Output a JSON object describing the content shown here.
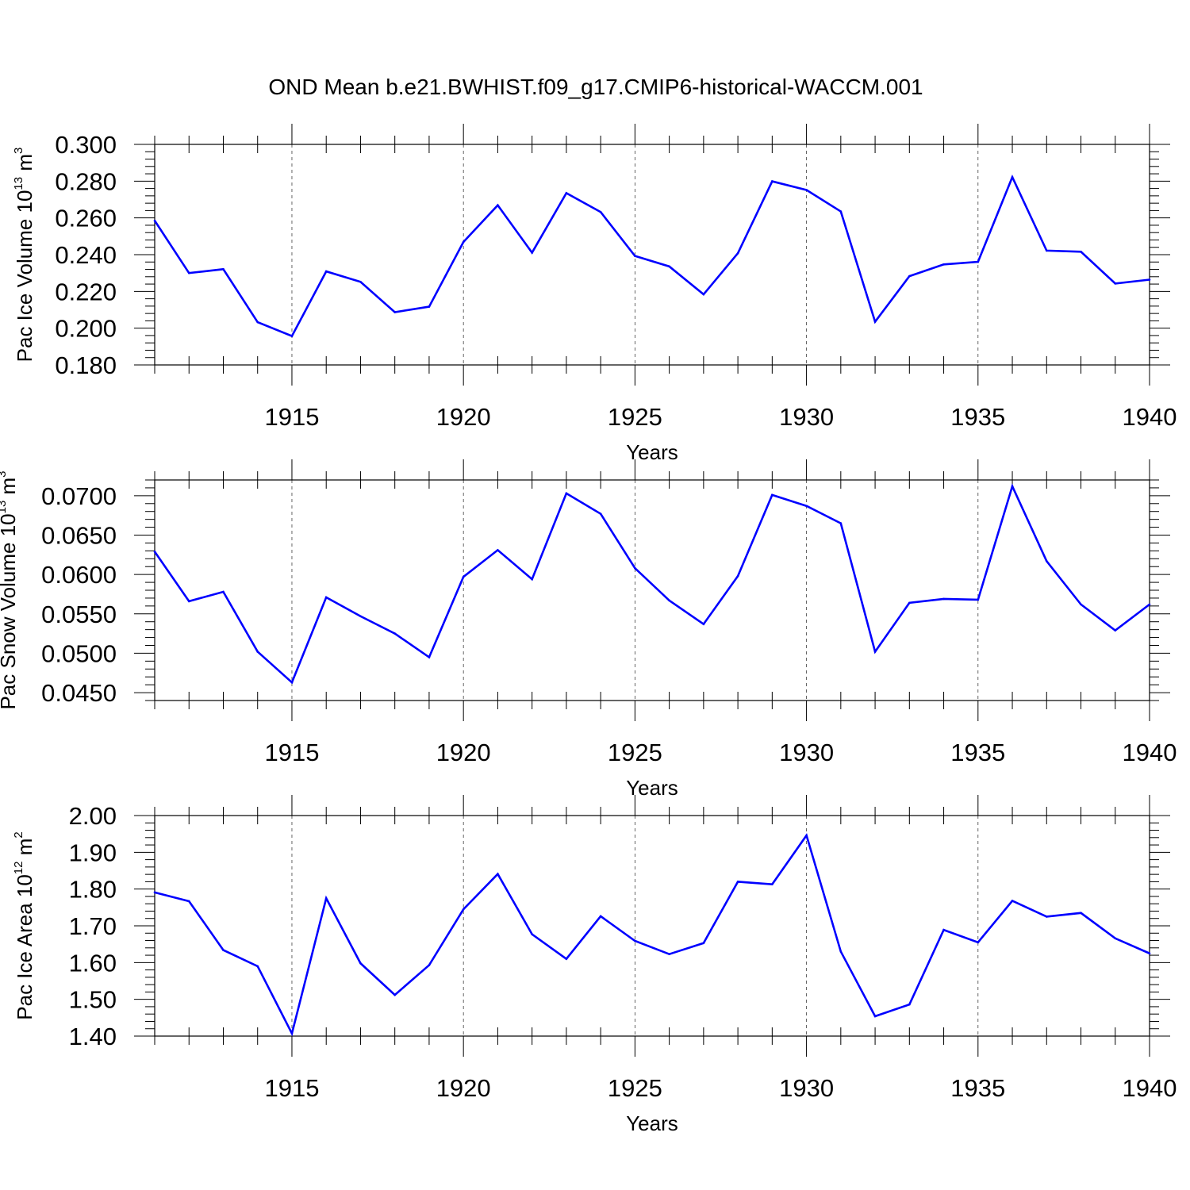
{
  "figure": {
    "title": "OND Mean b.e21.BWHIST.f09_g17.CMIP6-historical-WACCM.001"
  },
  "colors": {
    "series": "#0000ff",
    "axis": "#000000",
    "grid": "#000000"
  },
  "chart_data": [
    {
      "type": "line",
      "title": "OND Mean b.e21.BWHIST.f09_g17.CMIP6-historical-WACCM.001",
      "ylabel": "Pac Ice Volume 10^13 m^3",
      "ylabel_parts": {
        "base": "Pac Ice Volume 10",
        "exp": "13",
        "unit": "m",
        "unit_exp": "3"
      },
      "xlabel": "Years",
      "xlim": [
        1911,
        1940
      ],
      "ylim": [
        0.18,
        0.3
      ],
      "x_ticks": [
        "1915",
        "1920",
        "1925",
        "1930",
        "1935",
        "1940"
      ],
      "y_ticks": [
        "0.180",
        "0.200",
        "0.220",
        "0.240",
        "0.260",
        "0.280",
        "0.300"
      ],
      "grid": "vertical dashed at major x ticks",
      "x": [
        1911,
        1912,
        1913,
        1914,
        1915,
        1916,
        1917,
        1918,
        1919,
        1920,
        1921,
        1922,
        1923,
        1924,
        1925,
        1926,
        1927,
        1928,
        1929,
        1930,
        1931,
        1932,
        1933,
        1934,
        1935,
        1936,
        1937,
        1938,
        1939,
        1940
      ],
      "series": [
        {
          "values": [
            0.2585,
            0.23,
            0.2321,
            0.2033,
            0.1957,
            0.2309,
            0.2252,
            0.2087,
            0.2117,
            0.2469,
            0.2669,
            0.2411,
            0.2735,
            0.2632,
            0.2393,
            0.2336,
            0.2184,
            0.2408,
            0.2799,
            0.2752,
            0.2635,
            0.2035,
            0.2283,
            0.2347,
            0.2361,
            0.2822,
            0.2422,
            0.2416,
            0.2243,
            0.2264
          ]
        }
      ]
    },
    {
      "type": "line",
      "ylabel": "Pac Snow Volume 10^13 m^3",
      "ylabel_parts": {
        "base": "Pac Snow Volume 10",
        "exp": "13",
        "unit": "m",
        "unit_exp": "3"
      },
      "xlabel": "Years",
      "xlim": [
        1911,
        1940
      ],
      "ylim": [
        0.044,
        0.072
      ],
      "x_ticks": [
        "1915",
        "1920",
        "1925",
        "1930",
        "1935",
        "1940"
      ],
      "y_ticks": [
        "0.0450",
        "0.0500",
        "0.0550",
        "0.0600",
        "0.0650",
        "0.0700"
      ],
      "grid": "vertical dashed at major x ticks",
      "x": [
        1911,
        1912,
        1913,
        1914,
        1915,
        1916,
        1917,
        1918,
        1919,
        1920,
        1921,
        1922,
        1923,
        1924,
        1925,
        1926,
        1927,
        1928,
        1929,
        1930,
        1931,
        1932,
        1933,
        1934,
        1935,
        1936,
        1937,
        1938,
        1939,
        1940
      ],
      "series": [
        {
          "values": [
            0.0629,
            0.0566,
            0.0578,
            0.0502,
            0.0463,
            0.0571,
            0.0547,
            0.0525,
            0.0495,
            0.0597,
            0.0631,
            0.0594,
            0.0703,
            0.0677,
            0.0608,
            0.0567,
            0.0537,
            0.0598,
            0.0701,
            0.0687,
            0.0665,
            0.0502,
            0.0564,
            0.0569,
            0.0568,
            0.0712,
            0.0617,
            0.0562,
            0.0529,
            0.0562
          ]
        }
      ]
    },
    {
      "type": "line",
      "ylabel": "Pac Ice Area 10^12 m^2",
      "ylabel_parts": {
        "base": "Pac Ice Area 10",
        "exp": "12",
        "unit": "m",
        "unit_exp": "2"
      },
      "xlabel": "Years",
      "xlim": [
        1911,
        1940
      ],
      "ylim": [
        1.4,
        2.0
      ],
      "x_ticks": [
        "1915",
        "1920",
        "1925",
        "1930",
        "1935",
        "1940"
      ],
      "y_ticks": [
        "1.40",
        "1.50",
        "1.60",
        "1.70",
        "1.80",
        "1.90",
        "2.00"
      ],
      "grid": "vertical dashed at major x ticks",
      "x": [
        1911,
        1912,
        1913,
        1914,
        1915,
        1916,
        1917,
        1918,
        1919,
        1920,
        1921,
        1922,
        1923,
        1924,
        1925,
        1926,
        1927,
        1928,
        1929,
        1930,
        1931,
        1932,
        1933,
        1934,
        1935,
        1936,
        1937,
        1938,
        1939,
        1940
      ],
      "series": [
        {
          "values": [
            1.791,
            1.767,
            1.634,
            1.59,
            1.407,
            1.775,
            1.598,
            1.512,
            1.593,
            1.745,
            1.841,
            1.677,
            1.61,
            1.726,
            1.659,
            1.623,
            1.653,
            1.82,
            1.813,
            1.946,
            1.63,
            1.454,
            1.486,
            1.689,
            1.655,
            1.768,
            1.725,
            1.735,
            1.666,
            1.625
          ]
        }
      ]
    }
  ]
}
